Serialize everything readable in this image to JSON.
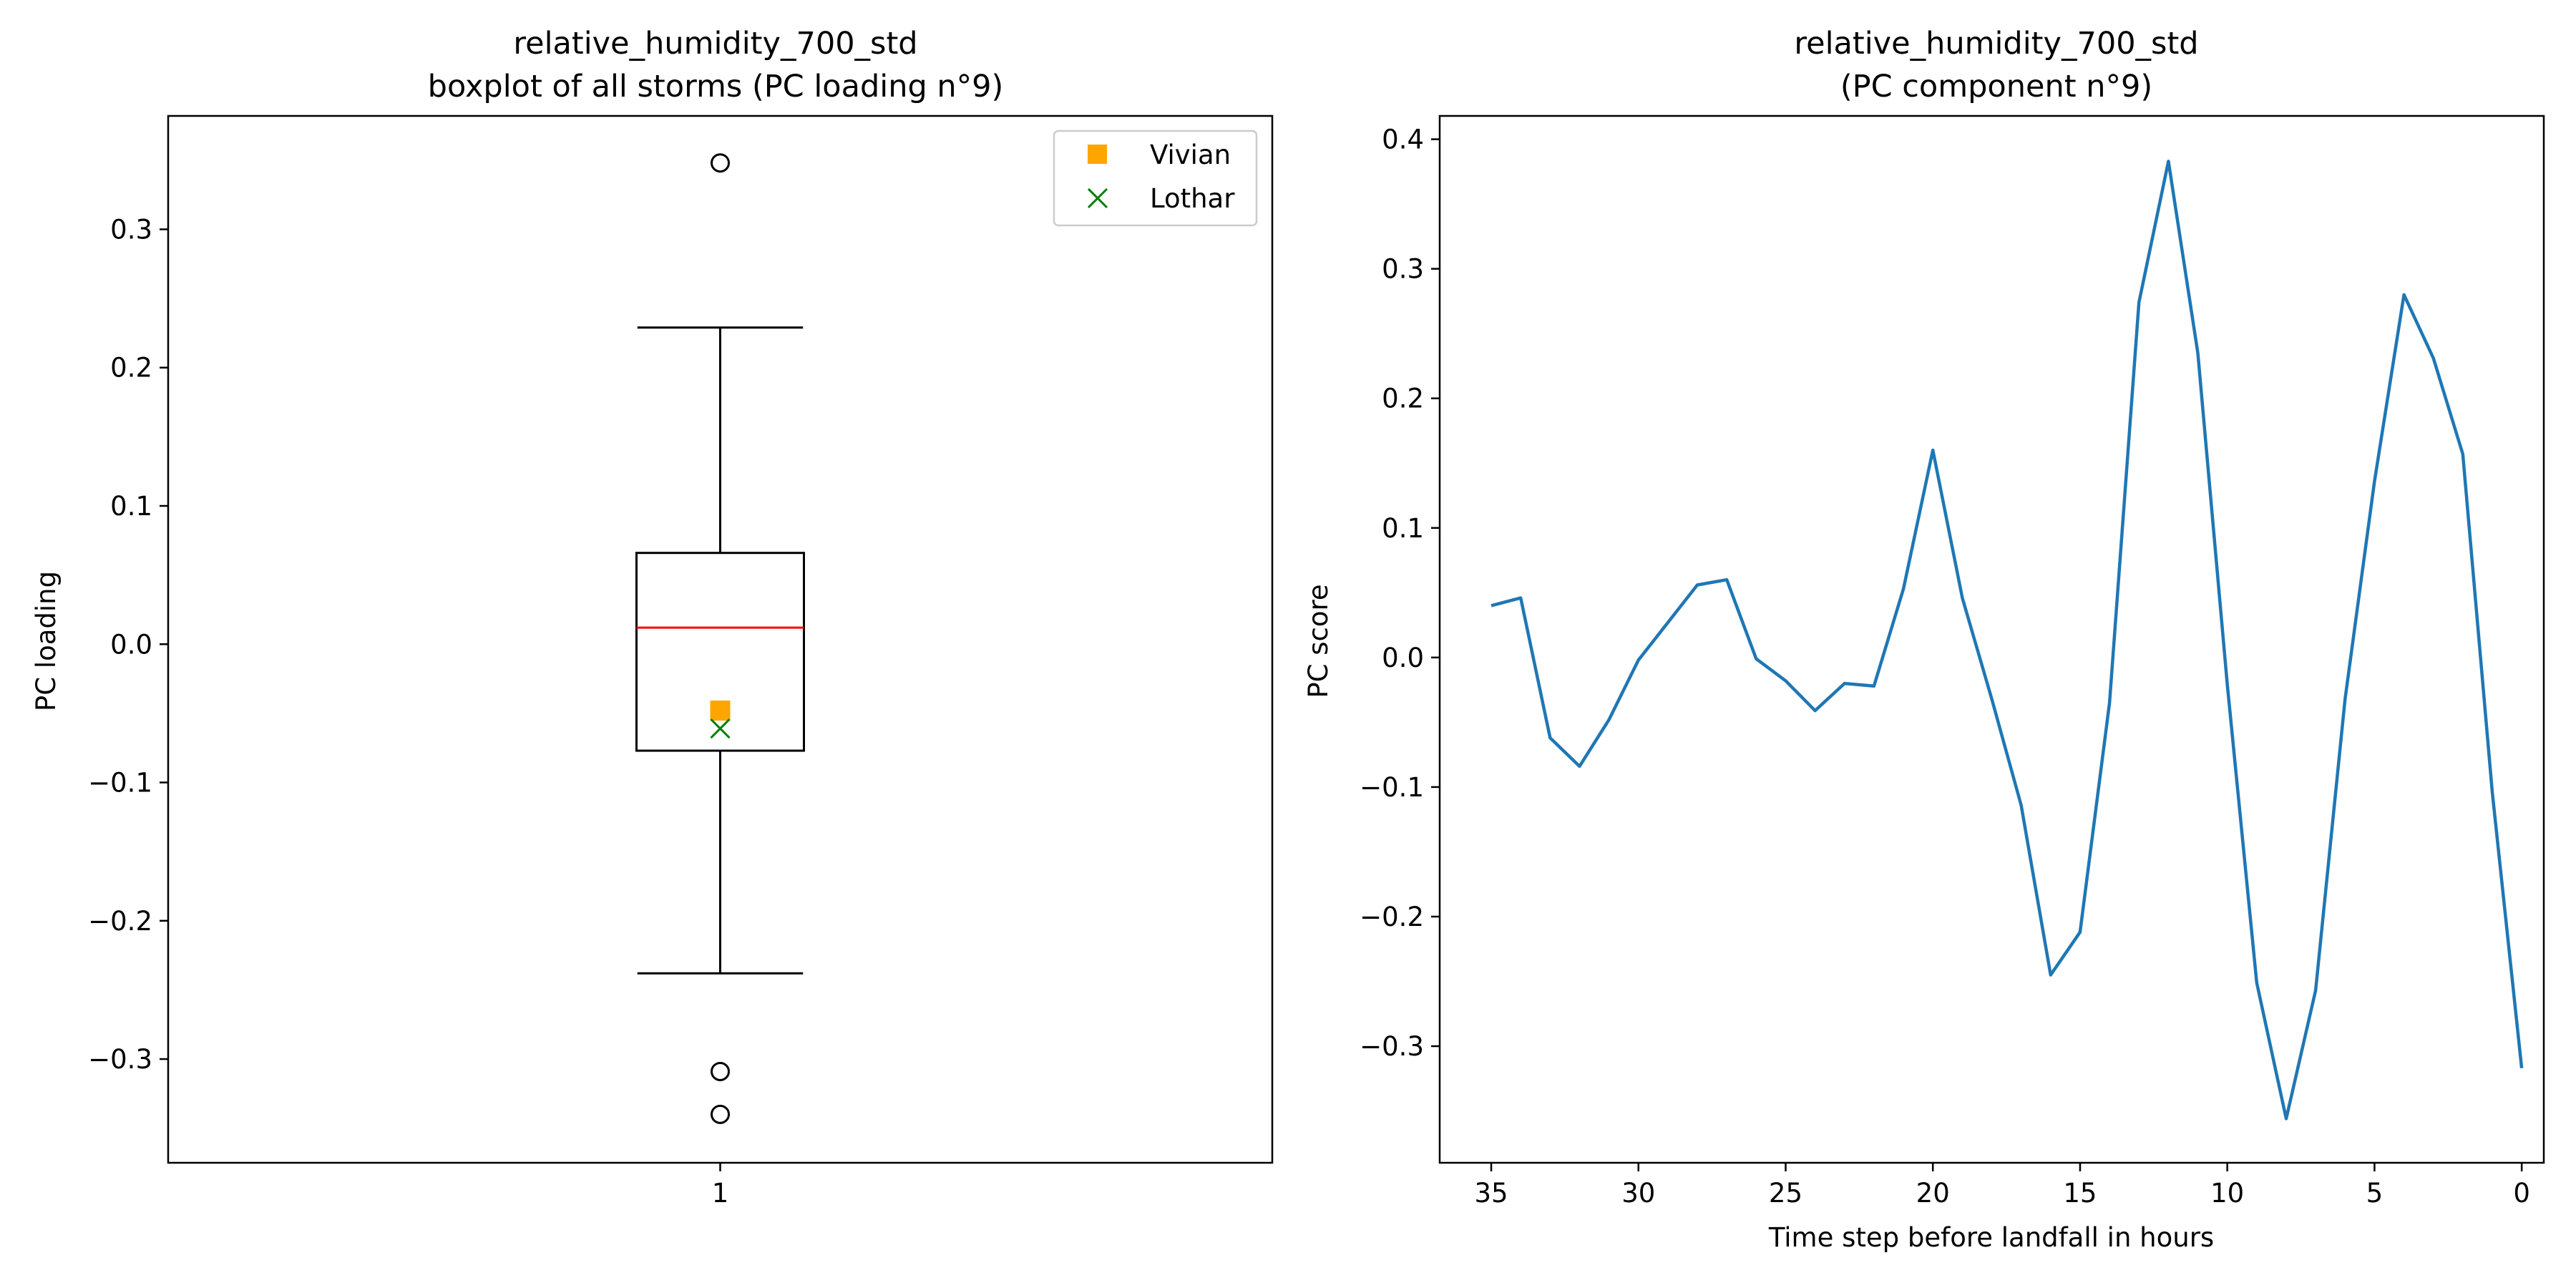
{
  "chart_data": [
    {
      "type": "boxplot",
      "title_line1": "relative_humidity_700_std",
      "title_line2": "boxplot of all storms (PC loading n°9)",
      "xlabel": "",
      "ylabel": "PC loading",
      "xticks": [
        "1"
      ],
      "ylim": [
        -0.375,
        0.382
      ],
      "yticks": [
        -0.3,
        -0.2,
        -0.1,
        0.0,
        0.1,
        0.2,
        0.3
      ],
      "ytick_labels": [
        "−0.3",
        "−0.2",
        "−0.1",
        "0.0",
        "0.1",
        "0.2",
        "0.3"
      ],
      "box": {
        "position": 1,
        "q1": -0.077,
        "median": 0.012,
        "q3": 0.066,
        "whisker_low": -0.238,
        "whisker_high": 0.229,
        "outliers": [
          0.348,
          -0.309,
          -0.34
        ],
        "median_color": "#ff0000"
      },
      "markers": [
        {
          "name": "Vivian",
          "x": 1,
          "y": -0.048,
          "marker": "square",
          "color": "#ffa500"
        },
        {
          "name": "Lothar",
          "x": 1,
          "y": -0.061,
          "marker": "x",
          "color": "#008000"
        }
      ],
      "legend": {
        "position": "upper right",
        "entries": [
          "Vivian",
          "Lothar"
        ]
      }
    },
    {
      "type": "line",
      "title_line1": "relative_humidity_700_std",
      "title_line2": "(PC component n°9)",
      "xlabel": "Time step before landfall in hours",
      "ylabel": "PC score",
      "x_inverted": true,
      "xlim": [
        36.75,
        -0.75
      ],
      "ylim": [
        -0.39,
        0.418
      ],
      "xticks": [
        35,
        30,
        25,
        20,
        15,
        10,
        5,
        0
      ],
      "yticks": [
        -0.3,
        -0.2,
        -0.1,
        0.0,
        0.1,
        0.2,
        0.3,
        0.4
      ],
      "ytick_labels": [
        "−0.3",
        "−0.2",
        "−0.1",
        "0.0",
        "0.1",
        "0.2",
        "0.3",
        "0.4"
      ],
      "series": [
        {
          "color": "#1f77b4",
          "x": [
            35,
            34,
            33,
            32,
            31,
            30,
            29,
            28,
            27,
            26,
            25,
            24,
            23,
            22,
            21,
            20,
            19,
            18,
            17,
            16,
            15,
            14,
            13,
            12,
            11,
            10,
            9,
            8,
            7,
            6,
            5,
            4,
            3,
            2,
            1,
            0
          ],
          "values": [
            0.04,
            0.046,
            -0.062,
            -0.084,
            -0.048,
            -0.002,
            0.027,
            0.056,
            0.06,
            -0.001,
            -0.018,
            -0.041,
            -0.02,
            -0.022,
            0.053,
            0.16,
            0.046,
            -0.032,
            -0.114,
            -0.245,
            -0.212,
            -0.035,
            0.274,
            0.383,
            0.235,
            -0.021,
            -0.251,
            -0.356,
            -0.257,
            -0.032,
            0.136,
            0.28,
            0.231,
            0.157,
            -0.104,
            -0.317
          ]
        }
      ]
    }
  ]
}
